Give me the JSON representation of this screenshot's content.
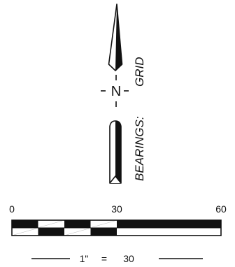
{
  "north_arrow": {
    "letter": "N",
    "bearings_text": "BEARINGS:",
    "grid_text": "GRID"
  },
  "scale_bar": {
    "ticks": [
      "0",
      "30",
      "60"
    ],
    "ratio_left": "1\"",
    "ratio_equals": "=",
    "ratio_right": "30"
  }
}
